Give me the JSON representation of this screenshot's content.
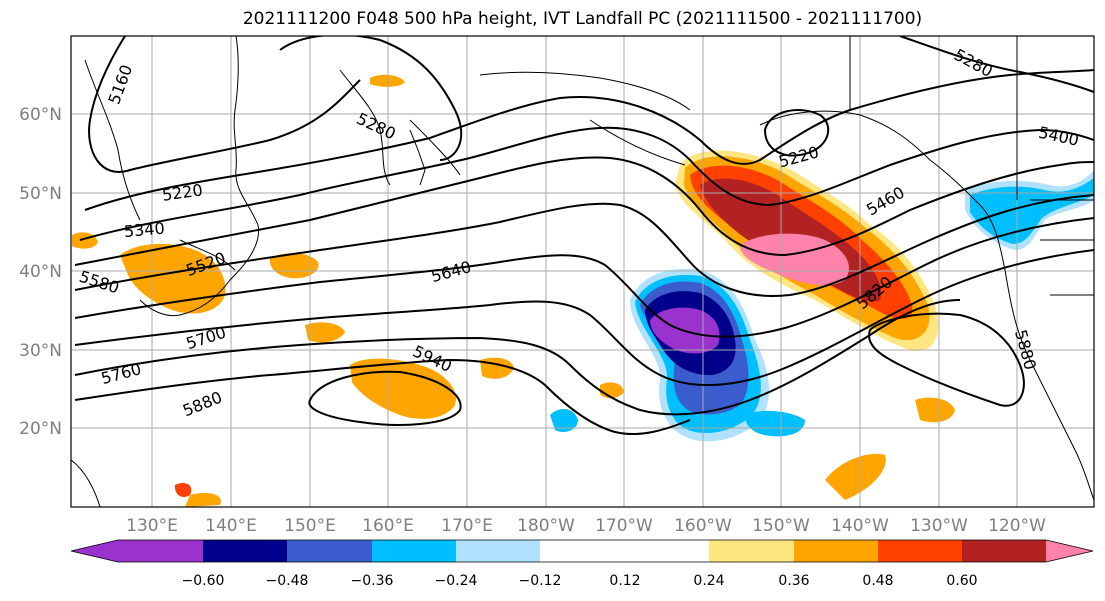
{
  "title": "2021111200 F048 500 hPa height, IVT Landfall PC (2021111500 - 2021111700)",
  "lat_labels": [
    "60°N",
    "50°N",
    "40°N",
    "30°N",
    "20°N"
  ],
  "lon_labels": [
    "130°E",
    "140°E",
    "150°E",
    "160°E",
    "170°E",
    "180°W",
    "170°W",
    "160°W",
    "150°W",
    "140°W",
    "130°W",
    "120°W"
  ],
  "contour_labels": [
    "5160",
    "5280",
    "5220",
    "5340",
    "5520",
    "5580",
    "5640",
    "5700",
    "5760",
    "5880",
    "5940",
    "5220",
    "5460",
    "5400",
    "5280",
    "5820",
    "5880"
  ],
  "colorbar": {
    "ticks": [
      "−0.60",
      "−0.48",
      "−0.36",
      "−0.24",
      "−0.12",
      "0.12",
      "0.24",
      "0.36",
      "0.48",
      "0.60"
    ],
    "colors": [
      "#9a32cd",
      "#00008b",
      "#3a5ccc",
      "#00bfff",
      "#b0e2ff",
      "#ffffff",
      "#ffe680",
      "#ffa500",
      "#ff4000",
      "#b22222",
      "#ff82ab"
    ]
  }
}
